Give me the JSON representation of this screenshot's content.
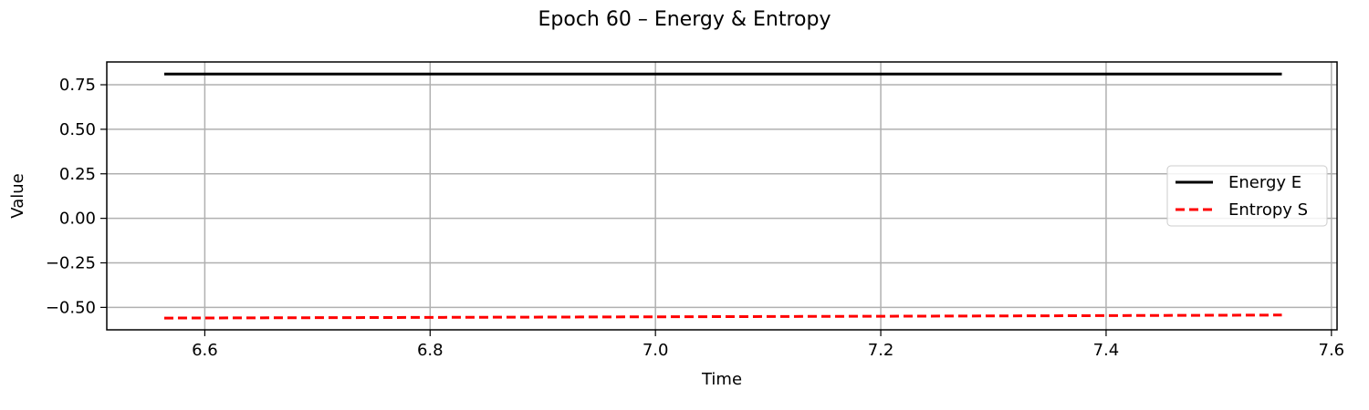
{
  "chart_data": {
    "type": "line",
    "title": "Epoch 60 – Energy & Entropy",
    "xlabel": "Time",
    "ylabel": "Value",
    "xlim": [
      6.513,
      7.605
    ],
    "ylim": [
      -0.626,
      0.878
    ],
    "xticks": [
      6.6,
      6.8,
      7.0,
      7.2,
      7.4,
      7.6
    ],
    "xtick_labels": [
      "6.6",
      "6.8",
      "7.0",
      "7.2",
      "7.4",
      "7.6"
    ],
    "yticks": [
      0.75,
      0.5,
      0.25,
      0.0,
      -0.25,
      -0.5
    ],
    "ytick_labels": [
      "0.75",
      "0.50",
      "0.25",
      "0.00",
      "−0.25",
      "−0.50"
    ],
    "grid": true,
    "legend_position": "center-right",
    "series": [
      {
        "name": "Energy E",
        "color": "#000000",
        "style": "solid",
        "x": [
          6.564,
          6.812,
          7.06,
          7.308,
          7.556
        ],
        "y": [
          0.81,
          0.81,
          0.81,
          0.81,
          0.81
        ]
      },
      {
        "name": "Entropy S",
        "color": "#ff0000",
        "style": "dashed",
        "x": [
          6.564,
          6.812,
          7.06,
          7.308,
          7.556
        ],
        "y": [
          -0.56,
          -0.556,
          -0.552,
          -0.548,
          -0.543
        ]
      }
    ]
  }
}
